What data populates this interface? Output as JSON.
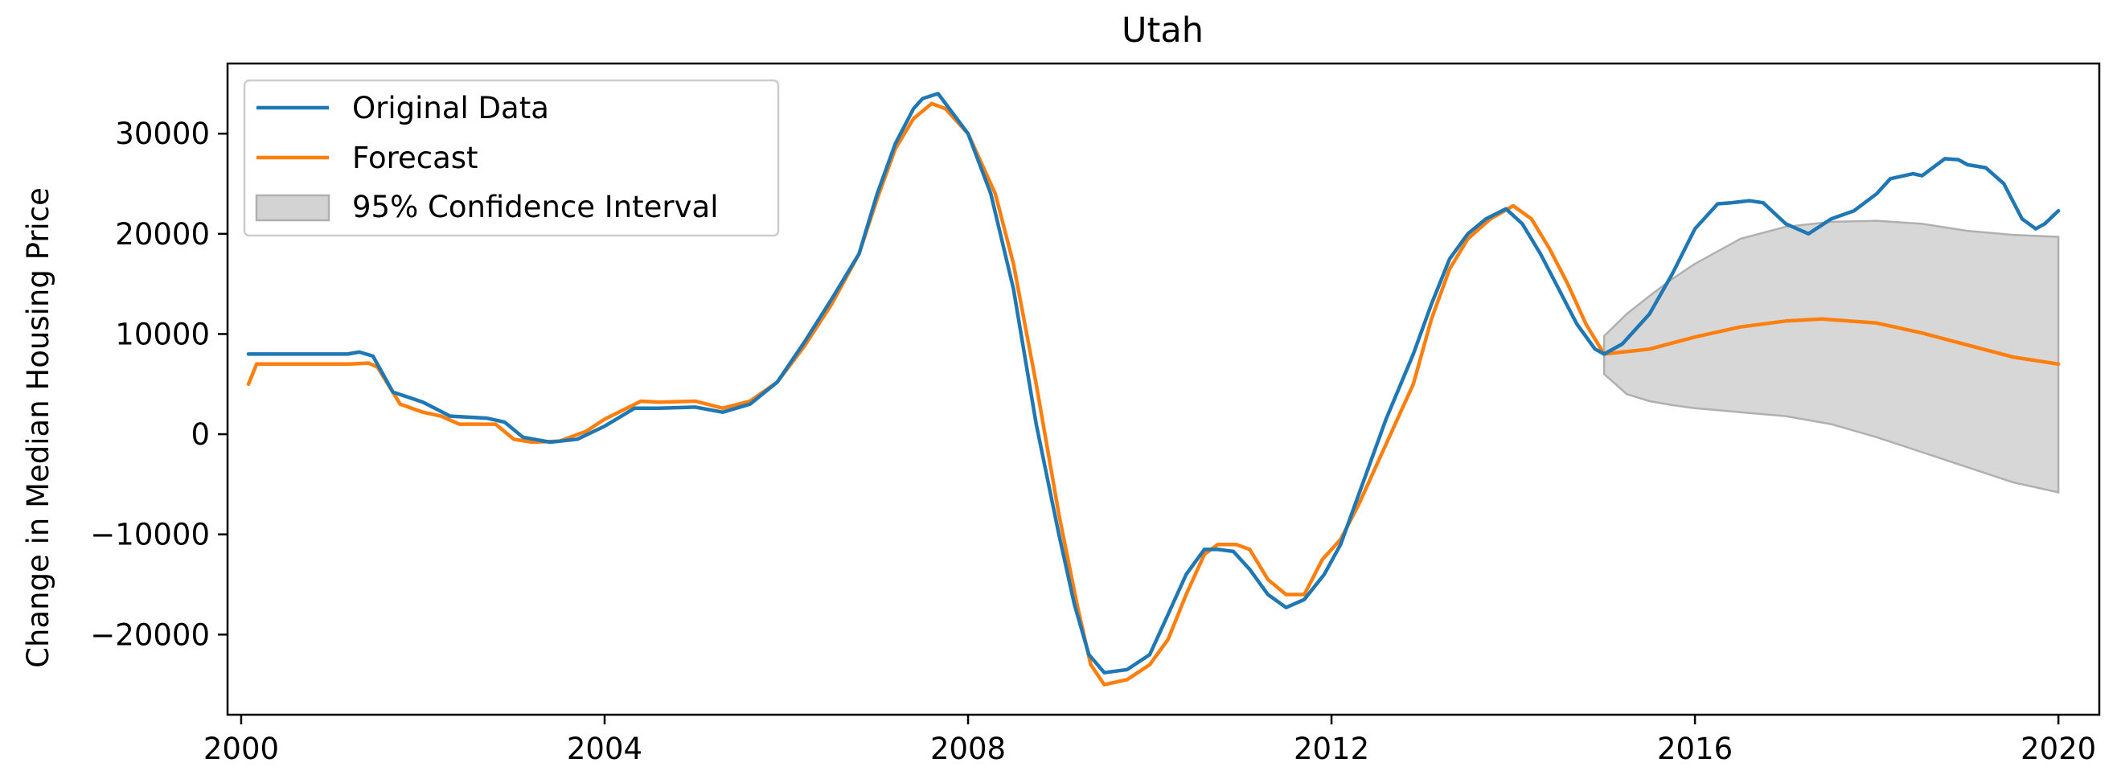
{
  "chart_data": {
    "type": "line",
    "title": "Utah",
    "xlabel": "",
    "ylabel": "Change in Median Housing Price",
    "xlim": [
      1999.85,
      2020.45
    ],
    "ylim": [
      -28000,
      37000
    ],
    "xticks": [
      2000,
      2004,
      2008,
      2012,
      2016,
      2020
    ],
    "xtick_labels": [
      "2000",
      "2004",
      "2008",
      "2012",
      "2016",
      "2020"
    ],
    "yticks": [
      -20000,
      -10000,
      0,
      10000,
      20000,
      30000
    ],
    "ytick_labels": [
      "−20000",
      "−10000",
      "0",
      "10000",
      "20000",
      "30000"
    ],
    "grid": false,
    "legend_position": "top-left",
    "legend": [
      "Original Data",
      "Forecast",
      "95% Confidence Interval"
    ],
    "colors": {
      "original": "#1f77b4",
      "forecast": "#ff7f0e",
      "ci_fill": "#d3d3d3",
      "ci_edge": "#b0b0b0"
    },
    "series": [
      {
        "name": "Original Data",
        "x": [
          2000.08,
          2000.5,
          2001.0,
          2001.17,
          2001.3,
          2001.45,
          2001.67,
          2002.0,
          2002.3,
          2002.7,
          2002.9,
          2003.1,
          2003.4,
          2003.7,
          2004.0,
          2004.33,
          2004.6,
          2005.0,
          2005.3,
          2005.6,
          2005.9,
          2006.2,
          2006.5,
          2006.8,
          2007.0,
          2007.2,
          2007.4,
          2007.5,
          2007.67,
          2008.0,
          2008.25,
          2008.5,
          2008.75,
          2009.0,
          2009.17,
          2009.33,
          2009.5,
          2009.75,
          2010.0,
          2010.2,
          2010.4,
          2010.6,
          2010.75,
          2010.92,
          2011.1,
          2011.3,
          2011.5,
          2011.7,
          2011.92,
          2012.1,
          2012.3,
          2012.6,
          2012.9,
          2013.1,
          2013.3,
          2013.5,
          2013.7,
          2013.92,
          2014.1,
          2014.3,
          2014.5,
          2014.7,
          2014.9,
          2015.0,
          2015.2,
          2015.5,
          2015.75,
          2016.0,
          2016.25,
          2016.4,
          2016.6,
          2016.75,
          2017.0,
          2017.25,
          2017.5,
          2017.75,
          2018.0,
          2018.15,
          2018.4,
          2018.5,
          2018.75,
          2018.9,
          2019.0,
          2019.2,
          2019.4,
          2019.6,
          2019.75,
          2019.85,
          2020.0
        ],
        "y": [
          8000,
          8000,
          8000,
          8000,
          8200,
          7800,
          4200,
          3200,
          1800,
          1600,
          1200,
          -300,
          -800,
          -500,
          800,
          2600,
          2600,
          2700,
          2200,
          3000,
          5200,
          9200,
          13500,
          18000,
          24000,
          29000,
          32500,
          33500,
          34000,
          30000,
          24000,
          14500,
          1000,
          -10000,
          -17000,
          -22000,
          -23800,
          -23500,
          -22000,
          -18000,
          -14000,
          -11500,
          -11500,
          -11700,
          -13500,
          -16000,
          -17300,
          -16500,
          -14000,
          -11000,
          -6000,
          1500,
          8000,
          13000,
          17500,
          20000,
          21500,
          22500,
          21000,
          18000,
          14500,
          11000,
          8500,
          8000,
          9000,
          12000,
          16000,
          20500,
          23000,
          23100,
          23300,
          23100,
          21000,
          20000,
          21500,
          22300,
          24000,
          25500,
          26000,
          25800,
          27500,
          27400,
          26900,
          26600,
          25000,
          21500,
          20500,
          21000,
          22300
        ]
      },
      {
        "name": "Forecast",
        "x": [
          2000.08,
          2000.17,
          2000.5,
          2001.0,
          2001.2,
          2001.4,
          2001.5,
          2001.75,
          2002.0,
          2002.2,
          2002.4,
          2002.8,
          2003.0,
          2003.2,
          2003.5,
          2003.8,
          2004.0,
          2004.4,
          2004.6,
          2005.0,
          2005.3,
          2005.6,
          2005.9,
          2006.2,
          2006.5,
          2006.8,
          2007.0,
          2007.2,
          2007.4,
          2007.6,
          2007.75,
          2008.0,
          2008.3,
          2008.5,
          2008.75,
          2009.0,
          2009.2,
          2009.35,
          2009.5,
          2009.75,
          2010.0,
          2010.2,
          2010.4,
          2010.6,
          2010.75,
          2010.95,
          2011.1,
          2011.3,
          2011.5,
          2011.7,
          2011.9,
          2012.1,
          2012.3,
          2012.6,
          2012.9,
          2013.1,
          2013.3,
          2013.5,
          2013.75,
          2014.0,
          2014.2,
          2014.4,
          2014.6,
          2014.8,
          2015.0,
          2015.5,
          2016.0,
          2016.5,
          2017.0,
          2017.4,
          2018.0,
          2018.5,
          2019.0,
          2019.5,
          2020.0
        ],
        "y": [
          5000,
          7000,
          7000,
          7000,
          7000,
          7100,
          6700,
          3000,
          2200,
          1800,
          1000,
          1000,
          -500,
          -800,
          -700,
          300,
          1500,
          3300,
          3200,
          3300,
          2600,
          3300,
          5200,
          8800,
          13000,
          18000,
          23500,
          28500,
          31500,
          33000,
          32500,
          30000,
          24000,
          17000,
          5000,
          -8000,
          -17000,
          -23000,
          -25000,
          -24500,
          -23000,
          -20500,
          -16000,
          -12000,
          -11000,
          -11000,
          -11500,
          -14500,
          -16000,
          -16000,
          -12500,
          -10500,
          -7000,
          -1000,
          5000,
          11500,
          16500,
          19500,
          21500,
          22800,
          21500,
          18500,
          15000,
          11000,
          8000,
          8500,
          9700,
          10700,
          11300,
          11500,
          11100,
          10100,
          8900,
          7700,
          7000
        ]
      }
    ],
    "confidence_interval": {
      "name": "95% Confidence Interval",
      "x": [
        2015.0,
        2015.25,
        2015.5,
        2015.75,
        2016.0,
        2016.5,
        2017.0,
        2017.5,
        2018.0,
        2018.5,
        2019.0,
        2019.5,
        2020.0
      ],
      "upper": [
        9800,
        12000,
        13800,
        15500,
        17000,
        19500,
        20700,
        21200,
        21300,
        21000,
        20300,
        19900,
        19700
      ],
      "lower": [
        6000,
        4000,
        3300,
        2900,
        2600,
        2200,
        1800,
        1000,
        -300,
        -1800,
        -3300,
        -4800,
        -5800
      ]
    }
  }
}
